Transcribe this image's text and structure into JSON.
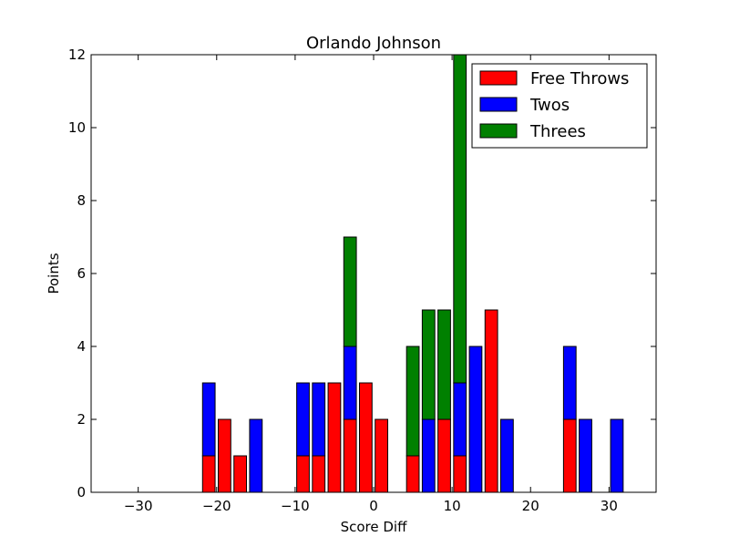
{
  "chart_data": {
    "type": "bar",
    "stacked": true,
    "title": "Orlando Johnson",
    "xlabel": "Score Diff",
    "ylabel": "Points",
    "xlim": [
      -36,
      36
    ],
    "ylim": [
      0,
      12
    ],
    "bar_width": 1.6,
    "x_ticks": [
      -30,
      -20,
      -10,
      0,
      10,
      20,
      30
    ],
    "x_tick_labels": [
      "−30",
      "−20",
      "−10",
      "0",
      "10",
      "20",
      "30"
    ],
    "y_ticks": [
      0,
      2,
      4,
      6,
      8,
      10,
      12
    ],
    "y_tick_labels": [
      "0",
      "2",
      "4",
      "6",
      "8",
      "10",
      "12"
    ],
    "grid": false,
    "legend_position": "top-right",
    "x": [
      -35,
      -33,
      -31,
      -29,
      -27,
      -25,
      -23,
      -21,
      -19,
      -17,
      -15,
      -13,
      -11,
      -9,
      -7,
      -5,
      -3,
      -1,
      1,
      3,
      5,
      7,
      9,
      11,
      13,
      15,
      17,
      19,
      21,
      23,
      25,
      27,
      29,
      31,
      33,
      35
    ],
    "series": [
      {
        "name": "Free Throws",
        "color": "#ff0000",
        "values": [
          0,
          0,
          0,
          0,
          0,
          0,
          0,
          1,
          2,
          1,
          0,
          0,
          0,
          1,
          1,
          3,
          2,
          3,
          2,
          0,
          1,
          0,
          2,
          1,
          0,
          5,
          0,
          0,
          0,
          0,
          2,
          0,
          0,
          0,
          0,
          0
        ]
      },
      {
        "name": "Twos",
        "color": "#0000ff",
        "values": [
          0,
          0,
          0,
          0,
          0,
          0,
          0,
          2,
          0,
          0,
          2,
          0,
          0,
          2,
          2,
          0,
          2,
          0,
          0,
          0,
          0,
          2,
          0,
          2,
          4,
          0,
          2,
          0,
          0,
          0,
          2,
          2,
          0,
          2,
          0,
          0
        ]
      },
      {
        "name": "Threes",
        "color": "#008000",
        "values": [
          0,
          0,
          0,
          0,
          0,
          0,
          0,
          0,
          0,
          0,
          0,
          0,
          0,
          0,
          0,
          0,
          3,
          0,
          0,
          0,
          3,
          3,
          3,
          9,
          0,
          0,
          0,
          0,
          0,
          0,
          0,
          0,
          0,
          0,
          0,
          0
        ]
      }
    ]
  }
}
